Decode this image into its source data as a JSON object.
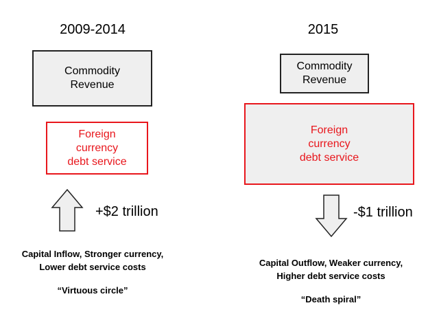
{
  "left": {
    "heading": "2009-2014",
    "commodity_box": {
      "line1": "Commodity",
      "line2": "Revenue"
    },
    "debt_box": {
      "line1": "Foreign",
      "line2": "currency",
      "line3": "debt service"
    },
    "arrow_direction": "up",
    "amount": "+$2 trillion",
    "caption_line1": "Capital Inflow, Stronger currency,",
    "caption_line2": "Lower debt service costs",
    "tagline": "“Virtuous circle”"
  },
  "right": {
    "heading": "2015",
    "commodity_box": {
      "line1": "Commodity",
      "line2": "Revenue"
    },
    "debt_box": {
      "line1": "Foreign",
      "line2": "currency",
      "line3": "debt service"
    },
    "arrow_direction": "down",
    "amount": "-$1 trillion",
    "caption_line1": "Capital Outflow, Weaker currency,",
    "caption_line2": "Higher debt service costs",
    "tagline": "“Death spiral”"
  },
  "colors": {
    "red": "#e8161c",
    "box_fill": "#efefef",
    "border_dark": "#222222"
  }
}
